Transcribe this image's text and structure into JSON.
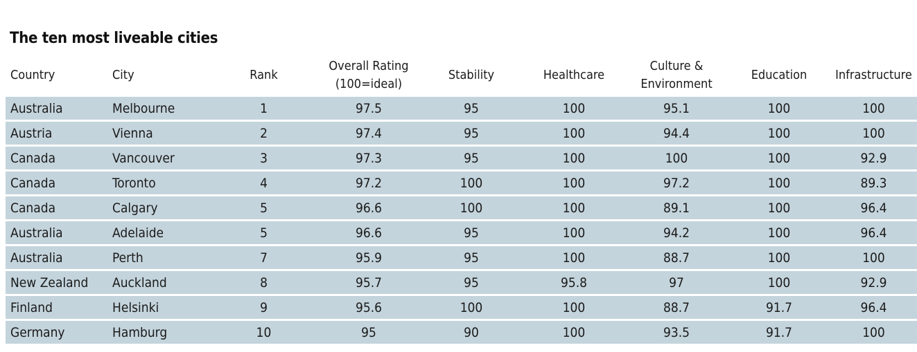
{
  "chart_data": {
    "type": "table",
    "title": "The ten most liveable cities",
    "columns": [
      {
        "key": "country",
        "label": [
          "Country"
        ],
        "align": "left"
      },
      {
        "key": "city",
        "label": [
          "City"
        ],
        "align": "left"
      },
      {
        "key": "rank",
        "label": [
          "Rank"
        ],
        "align": "center"
      },
      {
        "key": "overall",
        "label": [
          "Overall Rating",
          "(100=ideal)"
        ],
        "align": "center"
      },
      {
        "key": "stability",
        "label": [
          "Stability"
        ],
        "align": "center"
      },
      {
        "key": "healthcare",
        "label": [
          "Healthcare"
        ],
        "align": "center"
      },
      {
        "key": "culture",
        "label": [
          "Culture &",
          "Environment"
        ],
        "align": "center"
      },
      {
        "key": "education",
        "label": [
          "Education"
        ],
        "align": "center"
      },
      {
        "key": "infrastructure",
        "label": [
          "Infrastructure"
        ],
        "align": "center"
      }
    ],
    "rows": [
      {
        "country": "Australia",
        "city": "Melbourne",
        "rank": "1",
        "overall": "97.5",
        "stability": "95",
        "healthcare": "100",
        "culture": "95.1",
        "education": "100",
        "infrastructure": "100"
      },
      {
        "country": "Austria",
        "city": "Vienna",
        "rank": "2",
        "overall": "97.4",
        "stability": "95",
        "healthcare": "100",
        "culture": "94.4",
        "education": "100",
        "infrastructure": "100"
      },
      {
        "country": "Canada",
        "city": "Vancouver",
        "rank": "3",
        "overall": "97.3",
        "stability": "95",
        "healthcare": "100",
        "culture": "100",
        "education": "100",
        "infrastructure": "92.9"
      },
      {
        "country": "Canada",
        "city": "Toronto",
        "rank": "4",
        "overall": "97.2",
        "stability": "100",
        "healthcare": "100",
        "culture": "97.2",
        "education": "100",
        "infrastructure": "89.3"
      },
      {
        "country": "Canada",
        "city": "Calgary",
        "rank": "5",
        "overall": "96.6",
        "stability": "100",
        "healthcare": "100",
        "culture": "89.1",
        "education": "100",
        "infrastructure": "96.4"
      },
      {
        "country": "Australia",
        "city": "Adelaide",
        "rank": "5",
        "overall": "96.6",
        "stability": "95",
        "healthcare": "100",
        "culture": "94.2",
        "education": "100",
        "infrastructure": "96.4"
      },
      {
        "country": "Australia",
        "city": "Perth",
        "rank": "7",
        "overall": "95.9",
        "stability": "95",
        "healthcare": "100",
        "culture": "88.7",
        "education": "100",
        "infrastructure": "100"
      },
      {
        "country": "New Zealand",
        "city": "Auckland",
        "rank": "8",
        "overall": "95.7",
        "stability": "95",
        "healthcare": "95.8",
        "culture": "97",
        "education": "100",
        "infrastructure": "92.9"
      },
      {
        "country": "Finland",
        "city": "Helsinki",
        "rank": "9",
        "overall": "95.6",
        "stability": "100",
        "healthcare": "100",
        "culture": "88.7",
        "education": "91.7",
        "infrastructure": "96.4"
      },
      {
        "country": "Germany",
        "city": "Hamburg",
        "rank": "10",
        "overall": "95",
        "stability": "90",
        "healthcare": "100",
        "culture": "93.5",
        "education": "91.7",
        "infrastructure": "100"
      }
    ],
    "colors": {
      "row_background": "#c4d4dc",
      "row_separator": "#ffffff",
      "text": "#1a1a1a"
    }
  }
}
